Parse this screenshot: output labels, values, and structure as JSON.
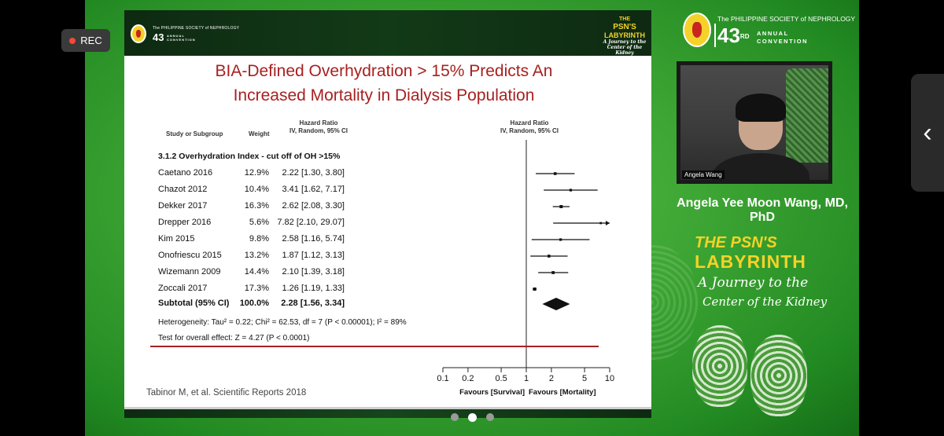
{
  "recording": {
    "label": "REC"
  },
  "slide": {
    "header_left": {
      "society": "The PHILIPPINE SOCIETY of NEPHROLOGY",
      "number": "43",
      "number_suffix": "rd",
      "annual": "ANNUAL",
      "convention": "CONVENTION"
    },
    "header_right": {
      "line1": "THE",
      "line2": "PSN'S",
      "line3": "LABYRINTH",
      "line4": "A Journey to the",
      "line5": "Center of the Kidney"
    },
    "title_line1": "BIA-Defined Overhydration > 15% Predicts An",
    "title_line2": "Increased Mortality in Dialysis Population",
    "table": {
      "col_study": "Study or Subgroup",
      "col_weight": "Weight",
      "col_hr_label": "Hazard Ratio",
      "col_hr_sub": "IV, Random, 95% CI",
      "col_plot_label": "Hazard Ratio",
      "col_plot_sub": "IV, Random, 95% CI",
      "subgroup": "3.1.2 Overhydration Index - cut off of OH >15%",
      "rows": [
        {
          "study": "Caetano 2016",
          "weight": "12.9%",
          "ci": "2.22 [1.30, 3.80]"
        },
        {
          "study": "Chazot 2012",
          "weight": "10.4%",
          "ci": "3.41 [1.62, 7.17]"
        },
        {
          "study": "Dekker 2017",
          "weight": "16.3%",
          "ci": "2.62 [2.08, 3.30]"
        },
        {
          "study": "Drepper 2016",
          "weight": "5.6%",
          "ci": "7.82 [2.10, 29.07]"
        },
        {
          "study": "Kim 2015",
          "weight": "9.8%",
          "ci": "2.58 [1.16, 5.74]"
        },
        {
          "study": "Onofriescu 2015",
          "weight": "13.2%",
          "ci": "1.87 [1.12, 3.13]"
        },
        {
          "study": "Wizemann 2009",
          "weight": "14.4%",
          "ci": "2.10 [1.39, 3.18]"
        },
        {
          "study": "Zoccali 2017",
          "weight": "17.3%",
          "ci": "1.26 [1.19, 1.33]"
        }
      ],
      "subtotal": {
        "study": "Subtotal (95% CI)",
        "weight": "100.0%",
        "ci": "2.28 [1.56, 3.34]"
      },
      "heterogeneity": "Heterogeneity: Tau² = 0.22; Chi² = 62.53, df = 7 (P < 0.00001); I² = 89%",
      "overall_effect": "Test for overall effect: Z = 4.27 (P < 0.0001)"
    },
    "axis": {
      "ticks": [
        "0.1",
        "0.2",
        "0.5",
        "1",
        "2",
        "5",
        "10"
      ],
      "favours_left": "Favours [Survival]",
      "favours_right": "Favours [Mortality]"
    },
    "citation": "Tabinor M, et al. Scientific Reports 2018"
  },
  "chart_data": {
    "type": "scatter",
    "x_scale": "log",
    "xlim": [
      0.1,
      10
    ],
    "reference_line": 1,
    "series": [
      {
        "study": "Caetano 2016",
        "hr": 2.22,
        "lo": 1.3,
        "hi": 3.8,
        "weight": 12.9
      },
      {
        "study": "Chazot 2012",
        "hr": 3.41,
        "lo": 1.62,
        "hi": 7.17,
        "weight": 10.4
      },
      {
        "study": "Dekker 2017",
        "hr": 2.62,
        "lo": 2.08,
        "hi": 3.3,
        "weight": 16.3
      },
      {
        "study": "Drepper 2016",
        "hr": 7.82,
        "lo": 2.1,
        "hi": 29.07,
        "weight": 5.6
      },
      {
        "study": "Kim 2015",
        "hr": 2.58,
        "lo": 1.16,
        "hi": 5.74,
        "weight": 9.8
      },
      {
        "study": "Onofriescu 2015",
        "hr": 1.87,
        "lo": 1.12,
        "hi": 3.13,
        "weight": 13.2
      },
      {
        "study": "Wizemann 2009",
        "hr": 2.1,
        "lo": 1.39,
        "hi": 3.18,
        "weight": 14.4
      },
      {
        "study": "Zoccali 2017",
        "hr": 1.26,
        "lo": 1.19,
        "hi": 1.33,
        "weight": 17.3
      }
    ],
    "subtotal": {
      "hr": 2.28,
      "lo": 1.56,
      "hi": 3.34
    }
  },
  "speaker": {
    "video_label": "Angela Wang",
    "name": "Angela Yee Moon Wang, MD, PhD"
  },
  "sidebar_logo": {
    "society": "The PHILIPPINE SOCIETY of NEPHROLOGY",
    "number": "43",
    "number_suffix": "RD",
    "annual": "ANNUAL",
    "convention": "CONVENTION"
  },
  "event_logo": {
    "line1": "THE PSN'S",
    "line2": "LABYRINTH",
    "line3": "A Journey to the",
    "line4": "Center of the Kidney"
  },
  "carousel": {
    "count": 3,
    "active": 1
  },
  "colors": {
    "background_green": "#3da533",
    "title_red": "#a82020",
    "accent_yellow": "#f4d22a"
  }
}
